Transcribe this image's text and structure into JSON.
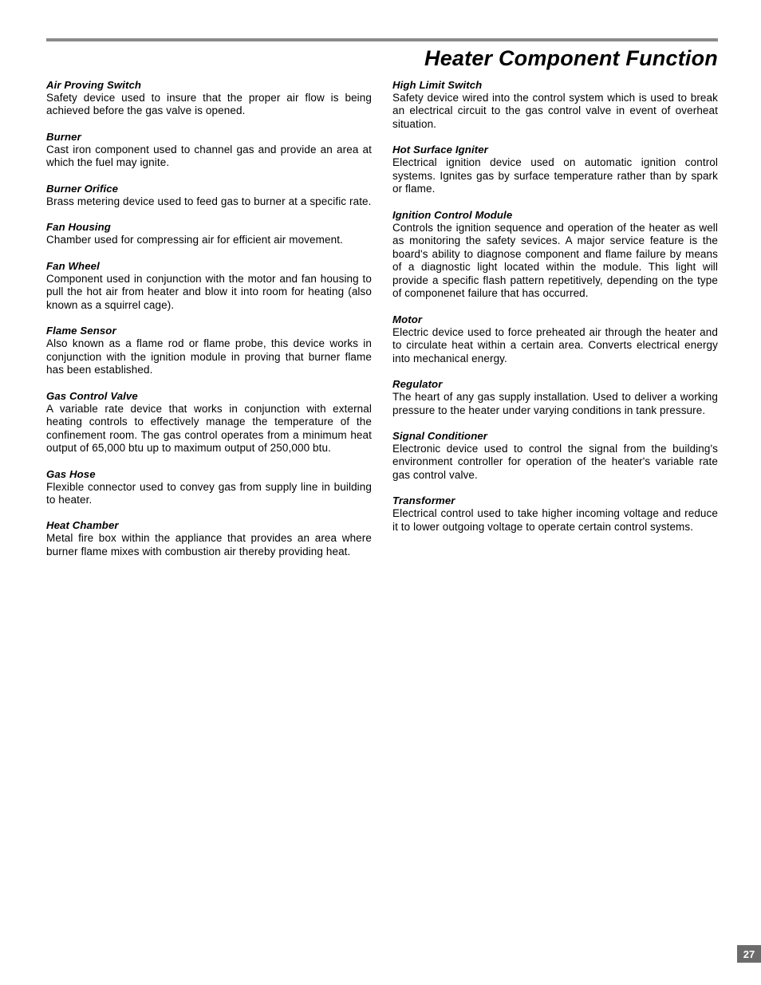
{
  "page": {
    "title": "Heater Component Function",
    "number": "27"
  },
  "left": [
    {
      "term": "Air Proving Switch",
      "def": "Safety device used to insure that the proper air flow is being achieved before the gas valve is opened."
    },
    {
      "term": "Burner",
      "def": "Cast iron component used to channel gas and provide an area at which the fuel may ignite."
    },
    {
      "term": "Burner Orifice",
      "def": "Brass metering device used to feed gas to burner at a specific rate."
    },
    {
      "term": "Fan Housing",
      "def": "Chamber used for compressing air for efficient air movement."
    },
    {
      "term": "Fan Wheel",
      "def": "Component used in conjunction with the motor and fan housing to pull the hot air from heater and blow it into room for heating (also known as a squirrel cage)."
    },
    {
      "term": "Flame Sensor",
      "def": "Also known as a flame rod or flame probe, this device works in conjunction with the ignition module in proving that burner flame has been established."
    },
    {
      "term": "Gas Control Valve",
      "def": "A variable rate device that works in conjunction with external heating controls to effectively manage the temperature of the confinement room. The gas control operates from a minimum heat output of 65,000 btu up to maximum output of 250,000 btu."
    },
    {
      "term": "Gas Hose",
      "def": "Flexible connector used to convey gas from supply line in building to heater."
    },
    {
      "term": "Heat Chamber",
      "def": "Metal fire box within the appliance that provides an area where burner flame mixes with combustion air thereby providing heat."
    }
  ],
  "right": [
    {
      "term": "High Limit Switch",
      "def": "Safety device wired into the control system which is used to break an electrical circuit to the gas control valve in event of overheat situation."
    },
    {
      "term": "Hot Surface Igniter",
      "def": "Electrical ignition device used on automatic ignition control systems.  Ignites gas by surface temperature rather than by spark or flame."
    },
    {
      "term": "Ignition Control Module",
      "def": "Controls the ignition sequence and operation of the heater as well as monitoring the safety sevices.  A major service feature is the board's ability to diagnose component and flame failure by means of a diagnostic light located within the module.  This light will provide a specific flash pattern repetitively, depending on the type of componenet failure that has occurred."
    },
    {
      "term": "Motor",
      "def": "Electric device used to force preheated air through the heater and to circulate heat within a certain area.  Converts electrical energy into mechanical energy."
    },
    {
      "term": "Regulator",
      "def": "The heart of any gas supply installation.  Used to deliver a working pressure to the heater under varying conditions in tank pressure."
    },
    {
      "term": "Signal Conditioner",
      "def": "Electronic device used to control the signal from the building's environment controller for operation of the heater's variable rate gas control valve."
    },
    {
      "term": "Transformer",
      "def": "Electrical control used to take higher incoming voltage and reduce it to lower outgoing voltage to operate certain control systems."
    }
  ]
}
